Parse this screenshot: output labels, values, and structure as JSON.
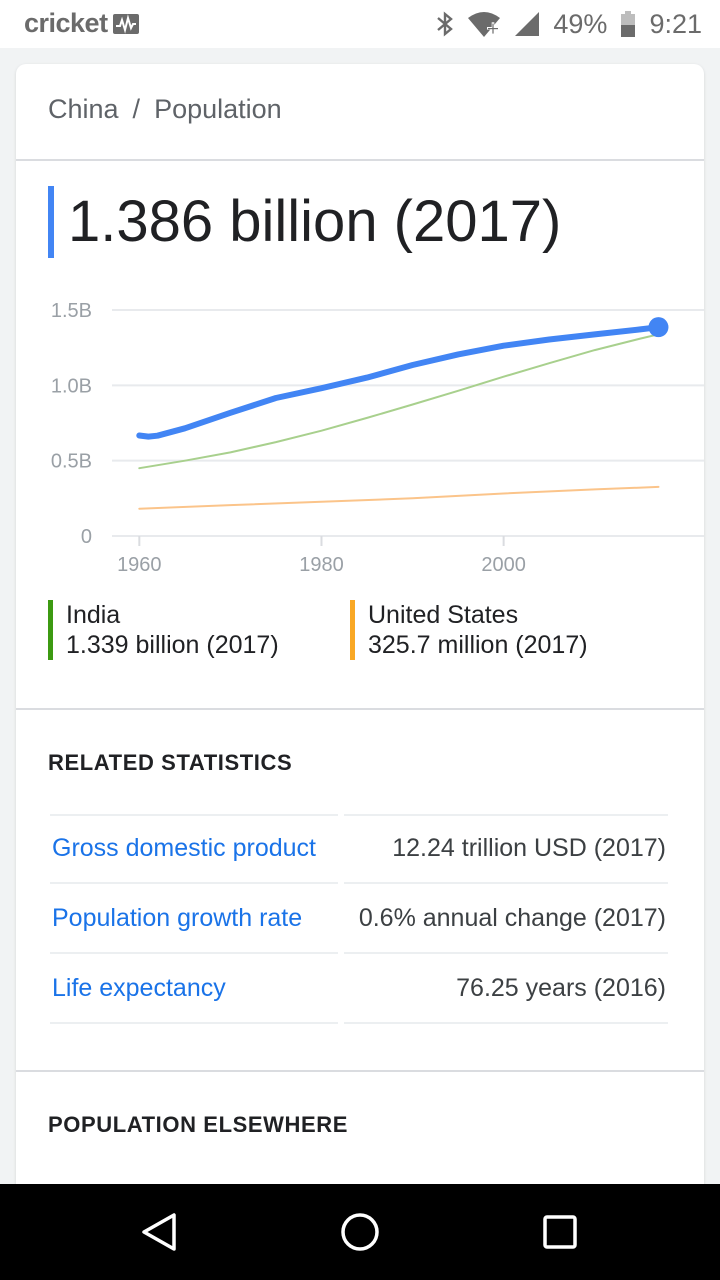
{
  "status_bar": {
    "carrier": "cricket",
    "battery": "49%",
    "time": "9:21"
  },
  "breadcrumb": {
    "country": "China",
    "separator": "/",
    "topic": "Population"
  },
  "headline": {
    "value": "1.386 billion (2017)",
    "accent_color": "#4285f4"
  },
  "chart_data": {
    "type": "line",
    "x_ticks": [
      "1960",
      "1980",
      "2000"
    ],
    "y_ticks": [
      "0",
      "0.5B",
      "1.0B",
      "1.5B"
    ],
    "ylim": [
      0,
      1.5
    ],
    "xlim": [
      1957,
      2022
    ],
    "grid": true,
    "series": [
      {
        "name": "China",
        "color": "#4285f4",
        "x": [
          1960,
          1961,
          1962,
          1965,
          1970,
          1975,
          1980,
          1985,
          1990,
          1995,
          2000,
          2005,
          2010,
          2015,
          2017
        ],
        "values": [
          0.667,
          0.66,
          0.666,
          0.715,
          0.818,
          0.916,
          0.981,
          1.051,
          1.135,
          1.205,
          1.263,
          1.304,
          1.338,
          1.371,
          1.386
        ]
      },
      {
        "name": "India",
        "color": "#a8d08d",
        "x": [
          1960,
          1965,
          1970,
          1975,
          1980,
          1985,
          1990,
          1995,
          2000,
          2005,
          2010,
          2015,
          2017
        ],
        "values": [
          0.45,
          0.5,
          0.555,
          0.623,
          0.699,
          0.784,
          0.873,
          0.964,
          1.057,
          1.147,
          1.234,
          1.31,
          1.339
        ]
      },
      {
        "name": "United States",
        "color": "#fbc48a",
        "x": [
          1960,
          1970,
          1980,
          1990,
          2000,
          2010,
          2017
        ],
        "values": [
          0.181,
          0.205,
          0.227,
          0.25,
          0.282,
          0.309,
          0.326
        ]
      }
    ]
  },
  "legend": [
    {
      "name": "India",
      "value": "1.339 billion (2017)",
      "color": "#3c9a11"
    },
    {
      "name": "United States",
      "value": "325.7 million (2017)",
      "color": "#f9a825"
    }
  ],
  "related": {
    "title": "RELATED STATISTICS",
    "rows": [
      {
        "label": "Gross domestic product",
        "value": "12.24 trillion USD (2017)"
      },
      {
        "label": "Population growth rate",
        "value": "0.6% annual change (2017)"
      },
      {
        "label": "Life expectancy",
        "value": "76.25 years (2016)"
      }
    ]
  },
  "elsewhere": {
    "title": "POPULATION ELSEWHERE"
  },
  "nav": {
    "back_icon": "back-triangle-icon",
    "home_icon": "home-circle-icon",
    "recents_icon": "recents-square-icon"
  }
}
